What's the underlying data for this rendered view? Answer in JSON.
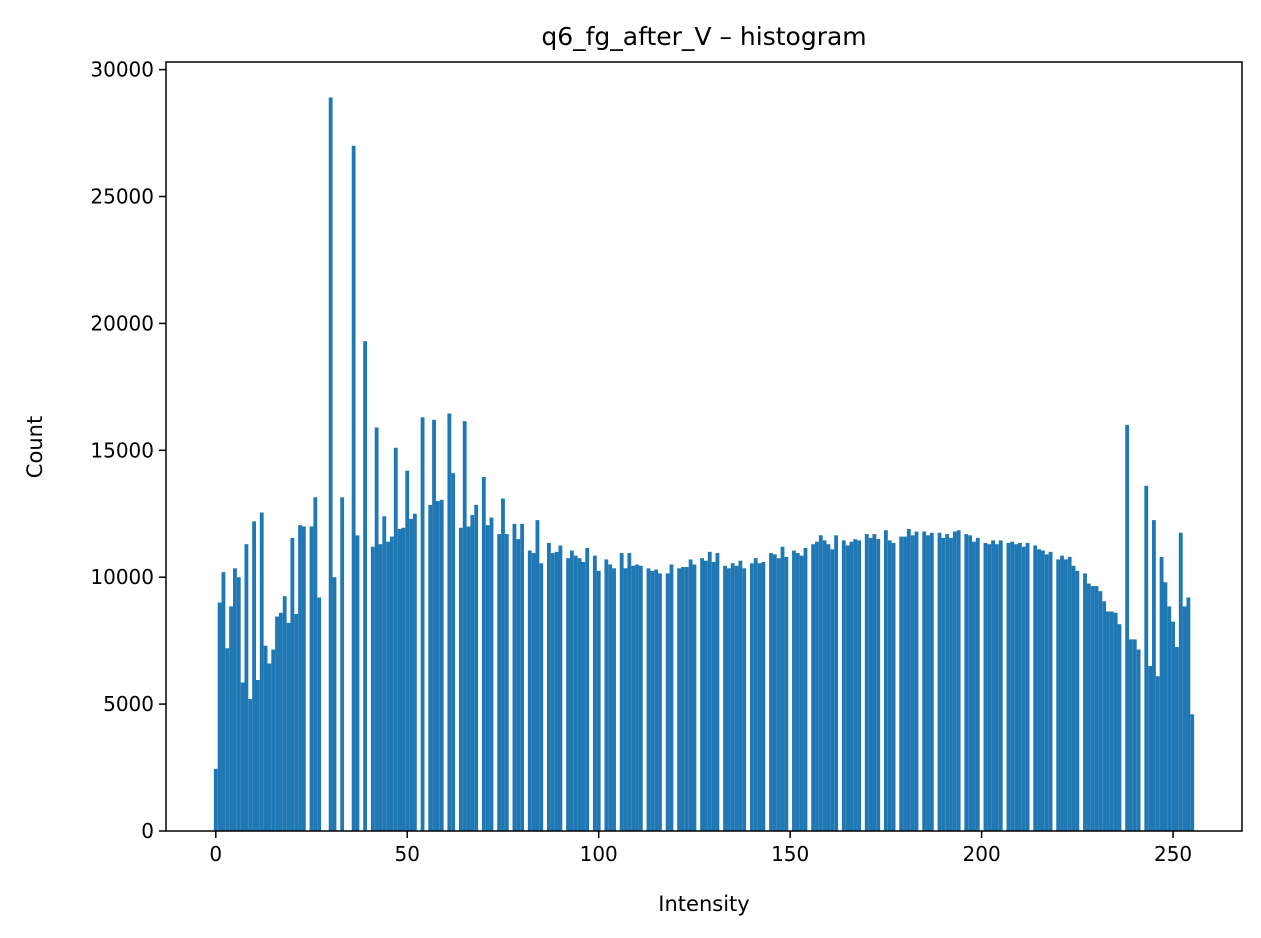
{
  "chart_data": {
    "type": "bar",
    "title": "q6_fg_after_V – histogram",
    "xlabel": "Intensity",
    "ylabel": "Count",
    "xlim": [
      -13,
      268
    ],
    "ylim": [
      0,
      30300
    ],
    "xticks": [
      0,
      50,
      100,
      150,
      200,
      250
    ],
    "yticks": [
      0,
      5000,
      10000,
      15000,
      20000,
      25000,
      30000
    ],
    "grid": false,
    "bar_color": "#1f77b4",
    "x_start": 0,
    "values": [
      2450,
      9000,
      10200,
      7200,
      8850,
      10350,
      10000,
      5850,
      11300,
      5200,
      12200,
      5950,
      12550,
      7300,
      6600,
      7150,
      8450,
      8600,
      9250,
      8200,
      11550,
      8550,
      12050,
      12000,
      0,
      12000,
      13150,
      9200,
      0,
      0,
      28900,
      10000,
      0,
      13150,
      0,
      0,
      27000,
      11650,
      0,
      19300,
      0,
      11200,
      15900,
      11300,
      12400,
      11400,
      11600,
      15100,
      11900,
      11950,
      14200,
      12300,
      12500,
      0,
      16300,
      0,
      12850,
      16200,
      13000,
      13050,
      0,
      16450,
      14100,
      0,
      11950,
      16150,
      12000,
      12450,
      12850,
      0,
      13950,
      12050,
      12350,
      0,
      11700,
      13100,
      11700,
      0,
      12100,
      11500,
      12100,
      0,
      11050,
      10950,
      12250,
      10550,
      0,
      11350,
      10950,
      11000,
      11250,
      0,
      10750,
      11050,
      10850,
      10750,
      10600,
      11150,
      0,
      10850,
      10250,
      0,
      10700,
      10500,
      10350,
      0,
      10950,
      10350,
      10950,
      10450,
      10500,
      10450,
      0,
      10350,
      10250,
      10300,
      10150,
      0,
      10150,
      10500,
      0,
      10350,
      10400,
      10400,
      10700,
      10500,
      0,
      10750,
      10650,
      11000,
      10600,
      10950,
      0,
      10450,
      10350,
      10550,
      10450,
      10650,
      10350,
      0,
      10550,
      10750,
      10550,
      10600,
      0,
      10950,
      10900,
      10750,
      11200,
      10800,
      0,
      11050,
      10950,
      10850,
      11150,
      0,
      11300,
      11400,
      11650,
      11450,
      11300,
      11100,
      11650,
      0,
      11450,
      11250,
      11400,
      11500,
      11450,
      0,
      11700,
      11550,
      11700,
      11500,
      0,
      11850,
      11450,
      11350,
      0,
      11600,
      11600,
      11900,
      11650,
      11800,
      0,
      11800,
      11650,
      11750,
      0,
      11750,
      11550,
      11700,
      11550,
      11800,
      11850,
      0,
      11700,
      11650,
      11400,
      11550,
      0,
      11350,
      11300,
      11450,
      11300,
      11450,
      0,
      11350,
      11400,
      11300,
      11350,
      11200,
      11350,
      0,
      11250,
      11100,
      11050,
      10900,
      11000,
      0,
      10700,
      10850,
      10700,
      10800,
      10450,
      10250,
      0,
      10150,
      9750,
      9650,
      9650,
      9450,
      9050,
      8650,
      8650,
      8600,
      8150,
      0,
      16000,
      7550,
      7550,
      7150,
      0,
      13600,
      6500,
      12250,
      6100,
      10800,
      9800,
      8850,
      8250,
      7250,
      11750,
      8850,
      9200,
      4600
    ]
  }
}
